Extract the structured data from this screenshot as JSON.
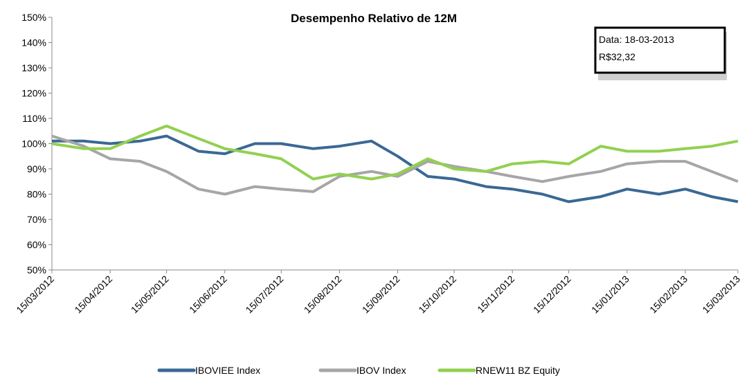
{
  "chart_data": {
    "type": "line",
    "title": "Desempenho Relativo de 12M",
    "annotation": [
      "Data: 18-03-2013",
      "R$32,32"
    ],
    "x": [
      "2012-03-15",
      "2012-04-01",
      "2012-04-15",
      "2012-05-01",
      "2012-05-15",
      "2012-06-01",
      "2012-06-15",
      "2012-07-01",
      "2012-07-15",
      "2012-08-01",
      "2012-08-15",
      "2012-09-01",
      "2012-09-15",
      "2012-10-01",
      "2012-10-15",
      "2012-11-01",
      "2012-11-15",
      "2012-12-01",
      "2012-12-15",
      "2013-01-01",
      "2013-01-15",
      "2013-02-01",
      "2013-02-15",
      "2013-03-01",
      "2013-03-15"
    ],
    "series": [
      {
        "name": "IBOVIEE Index",
        "color": "#3a6895",
        "values": [
          101,
          101,
          100,
          101,
          103,
          97,
          96,
          100,
          100,
          98,
          99,
          101,
          95,
          87,
          86,
          83,
          82,
          80,
          77,
          79,
          82,
          80,
          82,
          79,
          77
        ]
      },
      {
        "name": "IBOV Index",
        "color": "#a6a6a6",
        "values": [
          103,
          99,
          94,
          93,
          89,
          82,
          80,
          83,
          82,
          81,
          87,
          89,
          87,
          93,
          91,
          89,
          87,
          85,
          87,
          89,
          92,
          93,
          93,
          89,
          85
        ]
      },
      {
        "name": "RNEW11 BZ Equity",
        "color": "#92d050",
        "values": [
          100,
          98,
          98,
          103,
          107,
          102,
          98,
          96,
          94,
          86,
          88,
          86,
          88,
          94,
          90,
          89,
          92,
          93,
          92,
          99,
          97,
          97,
          98,
          99,
          101
        ]
      }
    ],
    "xlim": [
      "2012-03-15",
      "2013-03-15"
    ],
    "xticks": [
      {
        "value": "2012-03-15",
        "label": "15/03/2012"
      },
      {
        "value": "2012-04-15",
        "label": "15/04/2012"
      },
      {
        "value": "2012-05-15",
        "label": "15/05/2012"
      },
      {
        "value": "2012-06-15",
        "label": "15/06/2012"
      },
      {
        "value": "2012-07-15",
        "label": "15/07/2012"
      },
      {
        "value": "2012-08-15",
        "label": "15/08/2012"
      },
      {
        "value": "2012-09-15",
        "label": "15/09/2012"
      },
      {
        "value": "2012-10-15",
        "label": "15/10/2012"
      },
      {
        "value": "2012-11-15",
        "label": "15/11/2012"
      },
      {
        "value": "2012-12-15",
        "label": "15/12/2012"
      },
      {
        "value": "2013-01-15",
        "label": "15/01/2013"
      },
      {
        "value": "2013-02-15",
        "label": "15/02/2013"
      },
      {
        "value": "2013-03-15",
        "label": "15/03/2013"
      }
    ],
    "ylim": [
      50,
      150
    ],
    "yticks": [
      {
        "value": 50,
        "label": "50%"
      },
      {
        "value": 60,
        "label": "60%"
      },
      {
        "value": 70,
        "label": "70%"
      },
      {
        "value": 80,
        "label": "80%"
      },
      {
        "value": 90,
        "label": "90%"
      },
      {
        "value": 100,
        "label": "100%"
      },
      {
        "value": 110,
        "label": "110%"
      },
      {
        "value": 120,
        "label": "120%"
      },
      {
        "value": 130,
        "label": "130%"
      },
      {
        "value": 140,
        "label": "140%"
      },
      {
        "value": 150,
        "label": "150%"
      }
    ],
    "legend": "bottom"
  }
}
